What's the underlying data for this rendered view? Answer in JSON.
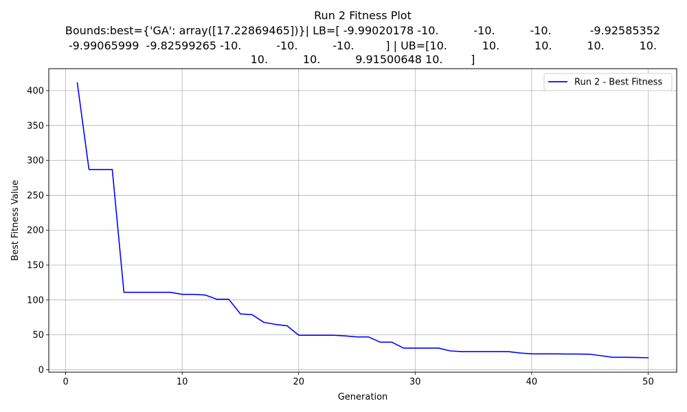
{
  "chart_data": {
    "type": "line",
    "title": "Run 2 Fitness Plot",
    "title_lines": [
      "Run 2 Fitness Plot",
      "Bounds:best={'GA': array([17.22869465])}| LB=[ -9.99020178 -10.          -10.          -10.           -9.92585352",
      "-9.99065999  -9.82599265 -10.          -10.          -10.         ] | UB=[10.          10.          10.          10.          10.",
      "10.          10.          9.91500648 10.        ]"
    ],
    "xlabel": "Generation",
    "ylabel": "Best Fitness Value",
    "xlim": [
      -1.45,
      52.45
    ],
    "ylim": [
      -3.5,
      431.5
    ],
    "xticks": [
      0,
      10,
      20,
      30,
      40,
      50
    ],
    "yticks": [
      0,
      50,
      100,
      150,
      200,
      250,
      300,
      350,
      400
    ],
    "grid": true,
    "legend_position": "top-right",
    "series": [
      {
        "name": "Run 2 - Best Fitness",
        "color": "#0000ff",
        "x": [
          1,
          2,
          3,
          4,
          5,
          6,
          7,
          8,
          9,
          10,
          11,
          12,
          13,
          14,
          15,
          16,
          17,
          18,
          19,
          20,
          21,
          22,
          23,
          24,
          25,
          26,
          27,
          28,
          29,
          30,
          31,
          32,
          33,
          34,
          35,
          36,
          37,
          38,
          39,
          40,
          41,
          42,
          43,
          44,
          45,
          46,
          47,
          48,
          49,
          50
        ],
        "y": [
          411,
          287,
          287,
          287,
          111,
          111,
          111,
          111,
          111,
          108,
          108,
          107,
          101,
          101,
          80,
          79,
          68,
          65,
          63,
          49.5,
          49.5,
          49.5,
          49.5,
          48.5,
          47,
          47,
          39.5,
          39.5,
          31,
          31,
          31,
          31,
          27,
          26,
          26,
          26,
          26,
          26,
          24,
          22.8,
          22.8,
          22.8,
          22.5,
          22.5,
          22.2,
          20,
          17.8,
          17.8,
          17.6,
          17.2
        ]
      }
    ]
  }
}
